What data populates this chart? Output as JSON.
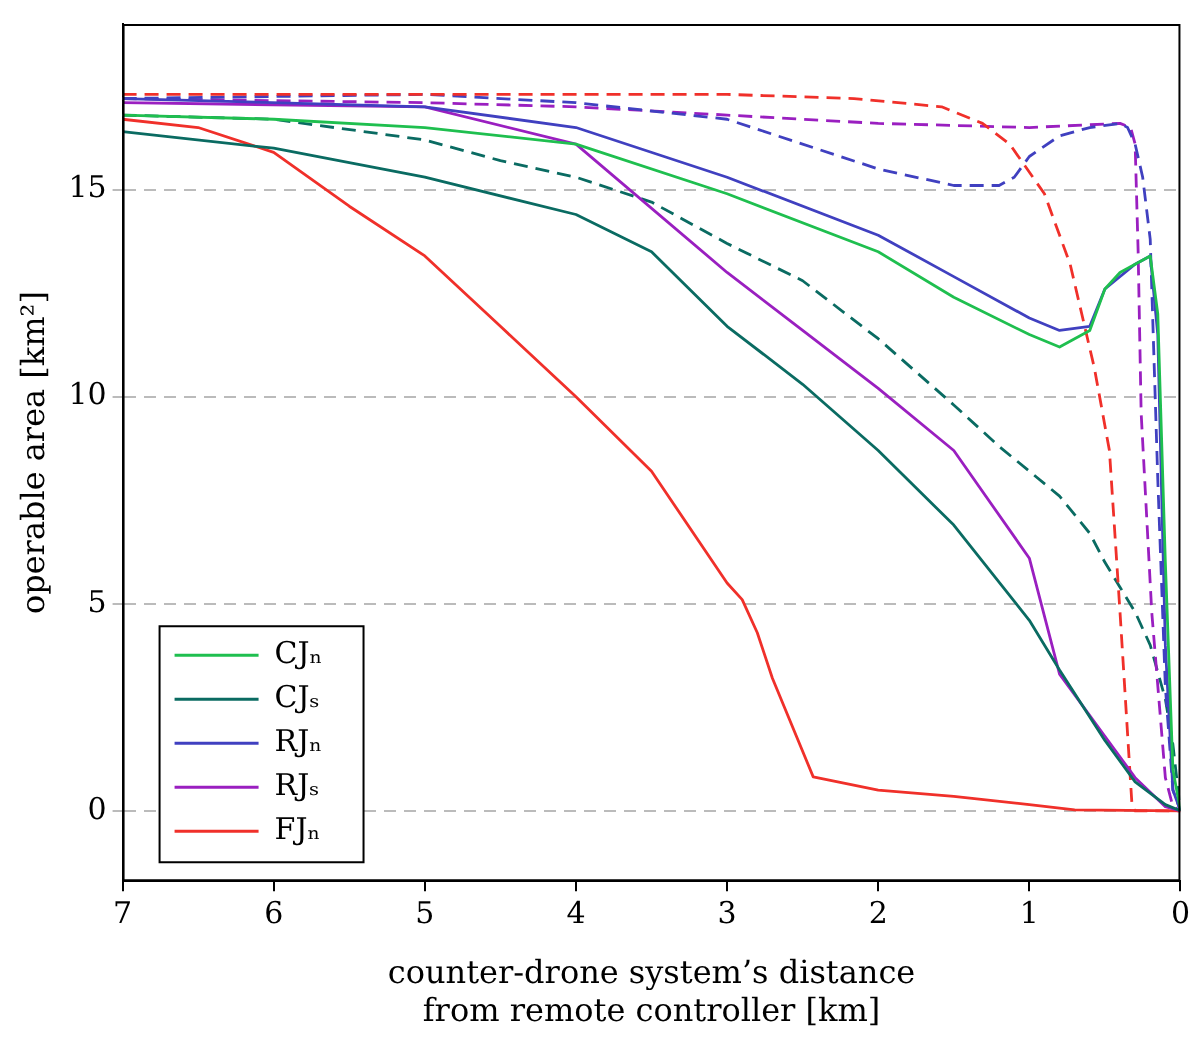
{
  "chart_data": {
    "type": "line",
    "xlabel": "counter-drone system’s distance\nfrom remote controller [km]",
    "ylabel": "operable area [km²]",
    "xlim": [
      7,
      0
    ],
    "ylim": [
      -1.7,
      19
    ],
    "xticks": [
      7,
      6,
      5,
      4,
      3,
      2,
      1,
      0
    ],
    "yticks": [
      0,
      5,
      10,
      15
    ],
    "grid": "y",
    "legend": "bottom left",
    "marker": "none",
    "series": [
      {
        "name": "CJₙ",
        "color": "#1fbf4f",
        "line_style": "solid",
        "x": [
          7,
          6,
          5,
          4,
          3,
          2,
          1.5,
          1,
          0.8,
          0.6,
          0.5,
          0.4,
          0.3,
          0.2,
          0.15,
          0.1,
          0.05,
          0
        ],
        "values": [
          16.8,
          16.7,
          16.5,
          16.1,
          14.9,
          13.5,
          12.4,
          11.5,
          11.2,
          11.6,
          12.6,
          13.0,
          13.2,
          13.4,
          12,
          6,
          1,
          0
        ]
      },
      {
        "name": "CJₛ",
        "color": "#0a6b62",
        "line_style": "solid",
        "x": [
          7,
          6,
          5,
          4,
          3.5,
          3,
          2.5,
          2,
          1.5,
          1,
          0.8,
          0.5,
          0.3,
          0.1,
          0
        ],
        "values": [
          16.4,
          16.0,
          15.3,
          14.4,
          13.5,
          11.7,
          10.3,
          8.7,
          6.9,
          4.6,
          3.4,
          1.7,
          0.7,
          0.15,
          0
        ]
      },
      {
        "name": "RJₙ",
        "color": "#4040c0",
        "line_style": "solid",
        "x": [
          7,
          5,
          4,
          3,
          2,
          1.5,
          1,
          0.8,
          0.6,
          0.5,
          0.3,
          0.2,
          0.15,
          0.1,
          0.05,
          0
        ],
        "values": [
          17.2,
          17.0,
          16.5,
          15.3,
          13.9,
          12.9,
          11.9,
          11.6,
          11.7,
          12.6,
          13.2,
          13.4,
          11.5,
          4,
          0.5,
          0
        ]
      },
      {
        "name": "RJₛ",
        "color": "#9a1fc0",
        "line_style": "solid",
        "x": [
          7,
          5,
          4,
          3,
          2.5,
          2,
          1.5,
          1,
          0.8,
          0.5,
          0.3,
          0.1,
          0
        ],
        "values": [
          17.1,
          17.0,
          16.1,
          13.0,
          11.6,
          10.2,
          8.7,
          6.1,
          3.3,
          1.8,
          0.8,
          0.1,
          0
        ]
      },
      {
        "name": "FJₙ",
        "color": "#f0302a",
        "line_style": "solid",
        "x": [
          7,
          6.5,
          6,
          5.5,
          5,
          4.5,
          4,
          3.5,
          3,
          2.9,
          2.8,
          2.7,
          2.43,
          2,
          1.5,
          1,
          0.7,
          0
        ],
        "values": [
          16.7,
          16.5,
          15.9,
          14.6,
          13.4,
          11.7,
          10.0,
          8.2,
          5.5,
          5.1,
          4.3,
          3.2,
          0.82,
          0.5,
          0.35,
          0.15,
          0.02,
          0
        ]
      },
      {
        "color": "#f0302a",
        "line_style": "dashed",
        "x": [
          7,
          3,
          2.16,
          1.58,
          1.31,
          1.13,
          0.9,
          0.73,
          0.57,
          0.47,
          0.4,
          0.32,
          0.3,
          0
        ],
        "values": [
          17.3,
          17.3,
          17.2,
          17.0,
          16.6,
          16.1,
          14.9,
          13.2,
          10.7,
          8.7,
          4.8,
          0.1,
          0,
          0
        ]
      },
      {
        "color": "#4040c0",
        "line_style": "dashed",
        "x": [
          7,
          5,
          4,
          3,
          2,
          1.5,
          1.2,
          1.1,
          1,
          0.8,
          0.6,
          0.4,
          0.35,
          0.3,
          0.25,
          0.2,
          0.15,
          0.1,
          0.05,
          0
        ],
        "values": [
          17.2,
          17.3,
          17.1,
          16.7,
          15.5,
          15.1,
          15.1,
          15.3,
          15.8,
          16.3,
          16.5,
          16.6,
          16.5,
          16.1,
          15.3,
          13.8,
          8,
          3,
          0.5,
          0
        ]
      },
      {
        "color": "#9a1fc0",
        "line_style": "dashed",
        "x": [
          7,
          5,
          4,
          3,
          2,
          1,
          0.4,
          0.33,
          0.3,
          0.28,
          0.26,
          0.19,
          0.1,
          0.05,
          0
        ],
        "values": [
          17.2,
          17.1,
          17.0,
          16.8,
          16.6,
          16.5,
          16.6,
          16.5,
          16.1,
          13.5,
          9.6,
          4.8,
          0.8,
          0.1,
          0
        ]
      },
      {
        "color": "#0a6b62",
        "line_style": "dashed",
        "x": [
          7,
          6,
          5,
          4.5,
          4,
          3.5,
          3,
          2.5,
          2,
          1.5,
          1.2,
          1,
          0.8,
          0.6,
          0.5,
          0.4,
          0.3,
          0.2,
          0.1,
          0.05,
          0
        ],
        "values": [
          16.8,
          16.7,
          16.2,
          15.7,
          15.3,
          14.7,
          13.7,
          12.8,
          11.4,
          9.8,
          8.8,
          8.2,
          7.6,
          6.7,
          6.0,
          5.4,
          4.8,
          4.0,
          2.7,
          1.6,
          0
        ]
      }
    ]
  }
}
